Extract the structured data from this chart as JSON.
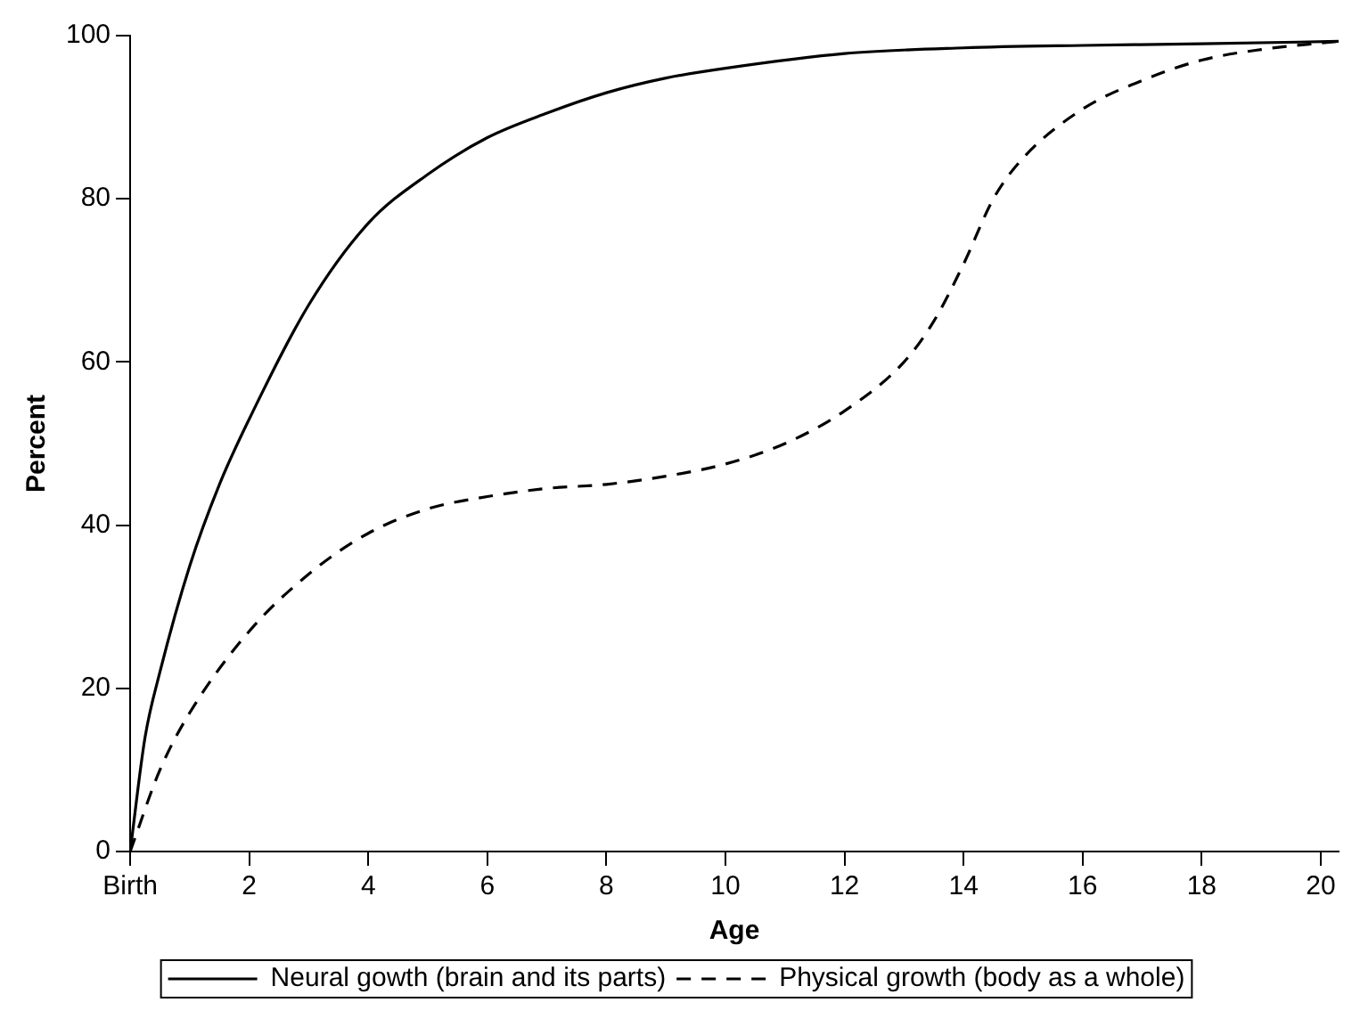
{
  "chart_data": {
    "type": "line",
    "xlabel": "Age",
    "ylabel": "Percent",
    "xlim": [
      0,
      20.3
    ],
    "ylim": [
      0,
      100
    ],
    "xticks": [
      {
        "value": 0,
        "label": "Birth"
      },
      2,
      4,
      6,
      8,
      10,
      12,
      14,
      16,
      18,
      20
    ],
    "yticks": [
      0,
      20,
      40,
      60,
      80,
      100
    ],
    "grid": false,
    "legend": "bottom",
    "marker": "none",
    "series": [
      {
        "name": "Neural gowth (brain and its parts)",
        "color": "#000000",
        "line_style": "solid",
        "x": [
          0,
          0.25,
          0.5,
          1,
          1.5,
          2,
          3,
          4,
          5,
          6,
          7,
          8,
          9,
          10,
          12,
          14,
          16,
          18,
          20.3
        ],
        "values": [
          0,
          14,
          22,
          35,
          45,
          53,
          67,
          77,
          83,
          87.5,
          90.5,
          93,
          94.8,
          96,
          97.8,
          98.5,
          98.8,
          99,
          99.3
        ]
      },
      {
        "name": "Physical growth (body as a whole)",
        "color": "#000000",
        "line_style": "dashed",
        "x": [
          0,
          0.5,
          1,
          2,
          3,
          4,
          5,
          6,
          7,
          8,
          9,
          10,
          11,
          12,
          13,
          13.5,
          14,
          14.5,
          15,
          16,
          17,
          18,
          19,
          20.3
        ],
        "values": [
          0,
          10,
          17,
          27,
          34,
          39,
          42,
          43.5,
          44.5,
          45,
          46,
          47.5,
          50,
          54,
          60,
          65,
          72,
          80,
          85,
          91,
          94.5,
          97,
          98.3,
          99.3
        ]
      }
    ]
  }
}
